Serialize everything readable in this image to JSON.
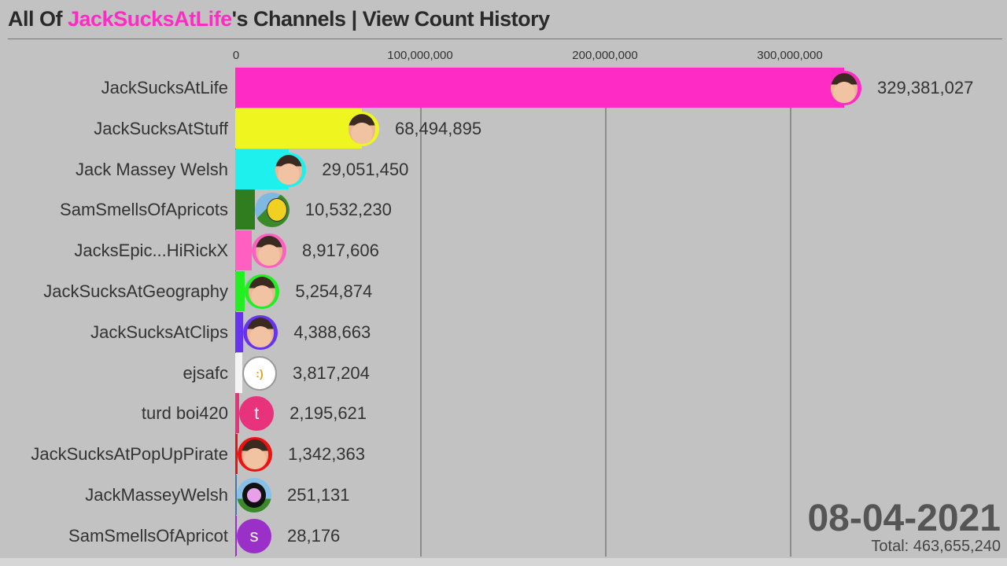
{
  "title": {
    "prefix": "All Of ",
    "highlight": "JackSucksAtLife",
    "suffix": "'s Channels | View Count History",
    "highlight_color": "#ff2bc4"
  },
  "date": "08-04-2021",
  "total": "Total: 463,655,240",
  "axis": {
    "ticks": [
      {
        "label": "0",
        "value": 0
      },
      {
        "label": "100,000,000",
        "value": 100000000
      },
      {
        "label": "200,000,000",
        "value": 200000000
      },
      {
        "label": "300,000,000",
        "value": 300000000
      }
    ]
  },
  "rows": [
    {
      "name": "JackSucksAtLife",
      "value_label": "329,381,027",
      "color": "#ff2bc4",
      "avatar": "face"
    },
    {
      "name": "JackSucksAtStuff",
      "value_label": "68,494,895",
      "color": "#eef51f",
      "avatar": "face"
    },
    {
      "name": "Jack Massey Welsh",
      "value_label": "29,051,450",
      "color": "#1ef0ee",
      "avatar": "face"
    },
    {
      "name": "SamSmellsOfApricots",
      "value_label": "10,532,230",
      "color": "#2f7d1e",
      "avatar": "cartoon-bird"
    },
    {
      "name": "JacksEpic...HiRickX",
      "value_label": "8,917,606",
      "color": "#ff5fc0",
      "avatar": "face"
    },
    {
      "name": "JackSucksAtGeography",
      "value_label": "5,254,874",
      "color": "#22ee22",
      "avatar": "face"
    },
    {
      "name": "JackSucksAtClips",
      "value_label": "4,388,663",
      "color": "#6633ee",
      "avatar": "face"
    },
    {
      "name": "ejsafc",
      "value_label": "3,817,204",
      "color": "#f4f4f4",
      "avatar": "thought-bubble"
    },
    {
      "name": "turd boi420",
      "value_label": "2,195,621",
      "color": "#e8327c",
      "avatar": "letter-t"
    },
    {
      "name": "JackSucksAtPopUpPirate",
      "value_label": "1,342,363",
      "color": "#ee1111",
      "avatar": "face-eyepatch"
    },
    {
      "name": "JackMasseyWelsh",
      "value_label": "251,131",
      "color": "#4477aa",
      "avatar": "distorted-face"
    },
    {
      "name": "SamSmellsOfApricot",
      "value_label": "28,176",
      "color": "#9b30c8",
      "avatar": "letter-s"
    }
  ],
  "chart_data": {
    "type": "bar",
    "orientation": "horizontal",
    "title": "All Of JackSucksAtLife's Channels | View Count History",
    "categories": [
      "JackSucksAtLife",
      "JackSucksAtStuff",
      "Jack Massey Welsh",
      "SamSmellsOfApricots",
      "JacksEpic...HiRickX",
      "JackSucksAtGeography",
      "JackSucksAtClips",
      "ejsafc",
      "turd boi420",
      "JackSucksAtPopUpPirate",
      "JackMasseyWelsh",
      "SamSmellsOfApricot"
    ],
    "values": [
      329381027,
      68494895,
      29051450,
      10532230,
      8917606,
      5254874,
      4388663,
      3817204,
      2195621,
      1342363,
      251131,
      28176
    ],
    "xlabel": "",
    "ylabel": "",
    "xlim": [
      0,
      330000000
    ],
    "x_ticks": [
      "0",
      "100,000,000",
      "200,000,000",
      "300,000,000"
    ],
    "grid": true,
    "annotations": [
      "08-04-2021",
      "Total: 463,655,240"
    ]
  }
}
